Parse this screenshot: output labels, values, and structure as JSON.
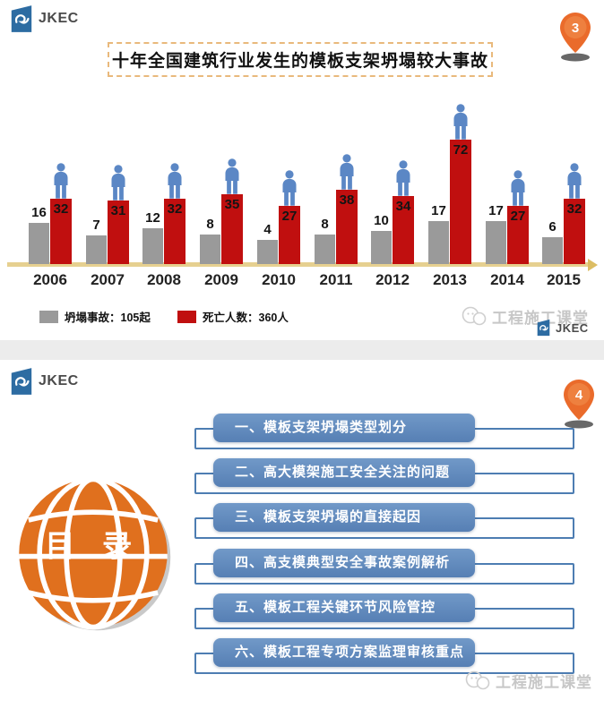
{
  "slide1": {
    "logo_text": "JKEC",
    "page_marker": "3",
    "title": "十年全国建筑行业发生的模板支架坍塌较大事故",
    "legend": [
      {
        "label": "坍塌事故：105起",
        "color": "#9a9a9a"
      },
      {
        "label": "死亡人数：360人",
        "color": "#c00f0f"
      }
    ],
    "watermark": "工程施工课堂",
    "footer_logo_text": "JKEC"
  },
  "chart_data": {
    "type": "bar",
    "title": "十年全国建筑行业发生的模板支架坍塌较大事故",
    "categories": [
      "2006",
      "2007",
      "2008",
      "2009",
      "2010",
      "2011",
      "2012",
      "2013",
      "2014",
      "2015"
    ],
    "series": [
      {
        "name": "坍塌事故",
        "legend_label": "坍塌事故：105起",
        "color": "#9a9a9a",
        "unit": "起",
        "total": 105,
        "values": [
          16,
          7,
          12,
          8,
          4,
          8,
          10,
          17,
          17,
          6
        ]
      },
      {
        "name": "死亡人数",
        "legend_label": "死亡人数：360人",
        "color": "#c00f0f",
        "unit": "人",
        "total": 360,
        "values": [
          32,
          31,
          32,
          35,
          27,
          38,
          34,
          72,
          27,
          32
        ]
      }
    ],
    "xlabel": "",
    "ylabel": "",
    "grid": false,
    "legend_position": "bottom",
    "annotations": "blue person pictogram standing on top of each 死亡人数 bar; tan horizontal axis with right arrow"
  },
  "slide2": {
    "logo_text": "JKEC",
    "page_marker": "4",
    "globe_label": "目 录",
    "toc": [
      "一、模板支架坍塌类型划分",
      "二、高大模架施工安全关注的问题",
      "三、模板支架坍塌的直接起因",
      "四、高支模典型安全事故案例解析",
      "五、模板工程关键环节风险管控",
      "六、模板工程专项方案监理审核重点"
    ],
    "watermark": "工程施工课堂"
  },
  "colors": {
    "bar_gray": "#9a9a9a",
    "bar_red": "#c00f0f",
    "axis_tan": "#e6d090",
    "person_blue": "#5b87c5",
    "pin_orange": "#ea6b2b",
    "toc_blue": "#5b87bd",
    "bracket_blue": "#4d7db2",
    "globe_orange": "#e0701e",
    "logo_blue": "#2d6ca2",
    "watermark_gray": "#c7c7c7"
  }
}
